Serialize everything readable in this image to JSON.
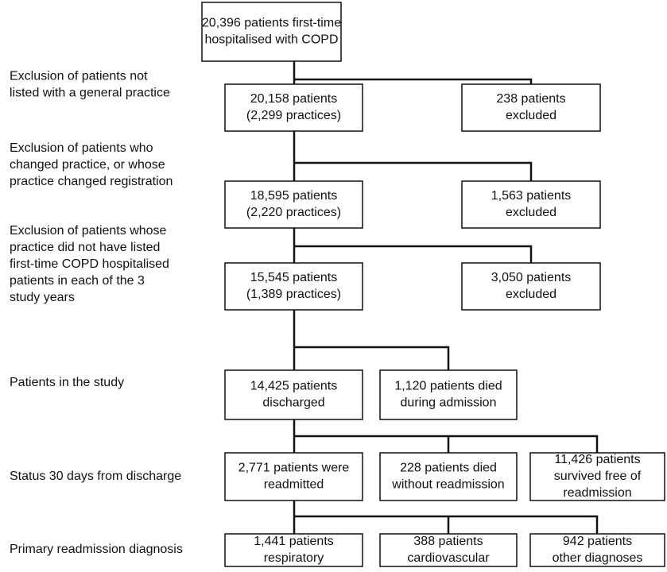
{
  "steps": [
    {
      "lines": [
        "Exclusion of patients not",
        "listed with a general practice"
      ]
    },
    {
      "lines": [
        "Exclusion of patients who",
        "changed practice, or whose",
        "practice changed registration"
      ]
    },
    {
      "lines": [
        "Exclusion of patients whose",
        "practice did not have listed",
        "first-time COPD hospitalised",
        "patients in each of the 3",
        "study years"
      ]
    },
    {
      "lines": [
        "Patients in the study"
      ]
    },
    {
      "lines": [
        "Status 30 days from discharge"
      ]
    },
    {
      "lines": [
        "Primary readmission diagnosis"
      ]
    }
  ],
  "boxes": [
    {
      "lines": [
        "20,396 patients first-time",
        "hospitalised with COPD"
      ]
    },
    {
      "lines": [
        "20,158 patients",
        "(2,299 practices)"
      ]
    },
    {
      "lines": [
        "238 patients",
        "excluded"
      ]
    },
    {
      "lines": [
        "18,595 patients",
        "(2,220 practices)"
      ]
    },
    {
      "lines": [
        "1,563 patients",
        "excluded"
      ]
    },
    {
      "lines": [
        "15,545 patients",
        "(1,389 practices)"
      ]
    },
    {
      "lines": [
        "3,050 patients",
        "excluded"
      ]
    },
    {
      "lines": [
        "14,425 patients",
        "discharged"
      ]
    },
    {
      "lines": [
        "1,120 patients died",
        "during admission"
      ]
    },
    {
      "lines": [
        "2,771 patients were",
        "readmitted"
      ]
    },
    {
      "lines": [
        "228 patients died",
        "without readmission"
      ]
    },
    {
      "lines": [
        "11,426 patients",
        "survived free of",
        "readmission"
      ]
    },
    {
      "lines": [
        "1,441 patients",
        "respiratory"
      ]
    },
    {
      "lines": [
        "388 patients",
        "cardiovascular"
      ]
    },
    {
      "lines": [
        "942 patients",
        "other diagnoses"
      ]
    }
  ]
}
